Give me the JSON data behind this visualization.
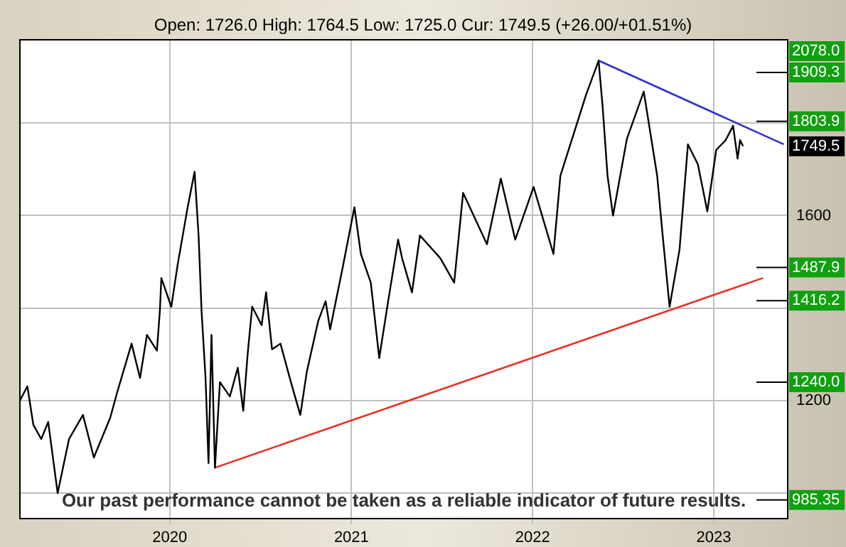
{
  "chart_data": {
    "type": "line",
    "subtitle": "Open: 1726.0 High: 1764.5 Low: 1725.0 Cur: 1749.5 (+26.00/+01.51%)",
    "x": [
      "2019-03-05",
      "2019-03-20",
      "2019-04-01",
      "2019-04-17",
      "2019-05-01",
      "2019-05-20",
      "2019-06-12",
      "2019-07-10",
      "2019-08-01",
      "2019-09-03",
      "2019-09-17",
      "2019-10-16",
      "2019-11-02",
      "2019-11-16",
      "2019-12-06",
      "2019-12-12",
      "2019-12-15",
      "2020-01-04",
      "2020-01-17",
      "2020-02-06",
      "2020-02-20",
      "2020-02-28",
      "2020-03-05",
      "2020-03-13",
      "2020-03-19",
      "2020-03-25",
      "2020-04-01",
      "2020-04-11",
      "2020-05-01",
      "2020-05-17",
      "2020-05-28",
      "2020-06-06",
      "2020-06-15",
      "2020-07-04",
      "2020-07-13",
      "2020-07-25",
      "2020-08-11",
      "2020-09-01",
      "2020-09-20",
      "2020-10-03",
      "2020-10-26",
      "2020-11-10",
      "2020-11-19",
      "2020-12-14",
      "2021-01-07",
      "2021-01-20",
      "2021-02-09",
      "2021-02-26",
      "2021-03-16",
      "2021-04-05",
      "2021-04-13",
      "2021-05-03",
      "2021-05-19",
      "2021-06-29",
      "2021-07-27",
      "2021-08-14",
      "2021-10-01",
      "2021-10-29",
      "2021-11-27",
      "2022-01-03",
      "2022-02-12",
      "2022-02-26",
      "2022-04-19",
      "2022-05-14",
      "2022-05-22",
      "2022-06-01",
      "2022-06-12",
      "2022-07-10",
      "2022-08-13",
      "2022-09-09",
      "2022-09-19",
      "2022-10-04",
      "2022-10-24",
      "2022-11-10",
      "2022-11-30",
      "2022-12-19",
      "2023-01-06",
      "2023-01-25",
      "2023-02-09",
      "2023-02-18",
      "2023-02-23",
      "2023-03-01"
    ],
    "series": [
      {
        "color": "#000000",
        "values": [
          1200,
          1231,
          1148,
          1117,
          1154,
          1000,
          1117,
          1169,
          1077,
          1163,
          1218,
          1323,
          1249,
          1342,
          1308,
          1394,
          1465,
          1403,
          1495,
          1618,
          1695,
          1557,
          1394,
          1249,
          1065,
          1342,
          1055,
          1240,
          1209,
          1271,
          1178,
          1302,
          1403,
          1363,
          1434,
          1311,
          1323,
          1240,
          1169,
          1262,
          1372,
          1415,
          1354,
          1486,
          1618,
          1517,
          1455,
          1292,
          1415,
          1548,
          1508,
          1434,
          1557,
          1508,
          1455,
          1649,
          1538,
          1680,
          1548,
          1662,
          1517,
          1686,
          1862,
          1935,
          1837,
          1686,
          1600,
          1766,
          1868,
          1686,
          1569,
          1403,
          1526,
          1754,
          1711,
          1609,
          1742,
          1763,
          1794,
          1723,
          1763,
          1750
        ]
      },
      {
        "type": "line",
        "color": "#e83020",
        "x": [
          "2020-04-01",
          "2023-04-10"
        ],
        "values": [
          1055,
          1465
        ]
      },
      {
        "type": "line",
        "color": "#3030d0",
        "x": [
          "2022-05-14",
          "2023-05-22"
        ],
        "values": [
          1935,
          1754
        ]
      }
    ],
    "xlim": [
      "2019-03-05",
      "2023-05-30"
    ],
    "xticks": [
      "2020",
      "2021",
      "2022",
      "2023"
    ],
    "ylim": [
      945,
      1980
    ],
    "yticks": [
      {
        "value": 1000,
        "label": null
      },
      1200,
      {
        "value": 1400,
        "label": null
      },
      1600,
      {
        "value": 1800,
        "label": null
      }
    ],
    "grid": true,
    "legend": false,
    "ref_lines": [
      {
        "axis": "y",
        "value": 1909.3,
        "label": "1909.3",
        "color": "#000000"
      },
      {
        "axis": "y",
        "value": 1803.9,
        "label": "1803.9",
        "color": "#000000"
      },
      {
        "axis": "y",
        "value": 1487.9,
        "label": "1487.9",
        "color": "#000000"
      },
      {
        "axis": "y",
        "value": 1416.2,
        "label": "1416.2",
        "color": "#000000"
      },
      {
        "axis": "y",
        "value": 1240.0,
        "label": "1240.0",
        "color": "#000000"
      },
      {
        "axis": "y",
        "value": 985.35,
        "label": "985.35",
        "color": "#000000"
      }
    ],
    "annotations": [
      "2078.0",
      {
        "text": "1749.5",
        "y": 1749.5
      },
      "Our past performance cannot be taken as a reliable indicator of future results."
    ]
  }
}
